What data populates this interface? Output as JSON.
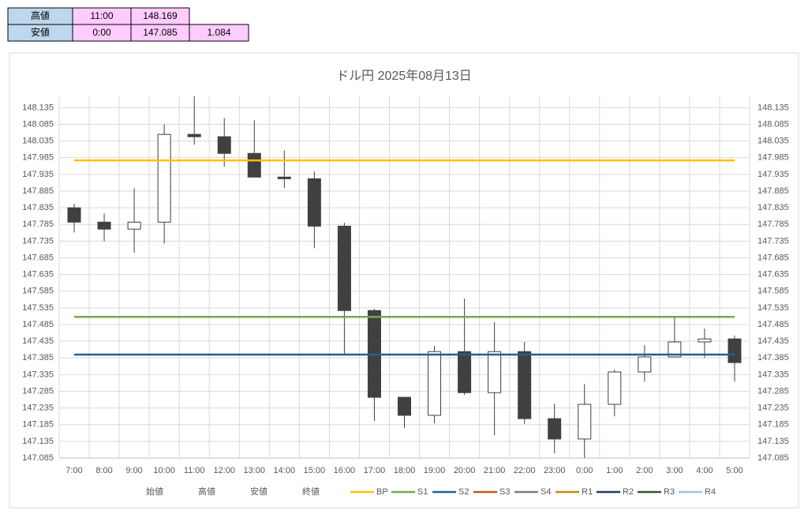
{
  "table": {
    "rows": [
      [
        "高値",
        "11:00",
        "148.169"
      ],
      [
        "安値",
        "0:00",
        "147.085",
        "1.084"
      ]
    ]
  },
  "chart_data": {
    "type": "candlestick",
    "title": "ドル円 2025年08月13日",
    "categories": [
      "7:00",
      "8:00",
      "9:00",
      "10:00",
      "11:00",
      "12:00",
      "13:00",
      "14:00",
      "15:00",
      "16:00",
      "17:00",
      "18:00",
      "19:00",
      "20:00",
      "21:00",
      "22:00",
      "23:00",
      "0:00",
      "1:00",
      "2:00",
      "3:00",
      "4:00",
      "5:00"
    ],
    "ohlc_names": [
      "始値",
      "高値",
      "安値",
      "終値"
    ],
    "open": [
      147.835,
      147.792,
      147.771,
      147.792,
      148.055,
      148.048,
      147.998,
      147.927,
      147.922,
      147.78,
      147.527,
      147.267,
      147.213,
      147.404,
      147.281,
      147.404,
      147.203,
      147.142,
      147.246,
      147.343,
      147.388,
      147.433,
      147.442
    ],
    "high": [
      147.847,
      147.818,
      147.894,
      148.085,
      148.169,
      148.104,
      148.097,
      148.007,
      147.944,
      147.79,
      147.532,
      147.267,
      147.421,
      147.563,
      147.492,
      147.433,
      147.248,
      147.307,
      147.35,
      147.423,
      147.506,
      147.473,
      147.452
    ],
    "low": [
      147.761,
      147.735,
      147.7,
      147.728,
      148.024,
      147.958,
      147.927,
      147.894,
      147.714,
      147.395,
      147.196,
      147.175,
      147.189,
      147.274,
      147.154,
      147.187,
      147.099,
      147.085,
      147.21,
      147.314,
      147.388,
      147.385,
      147.314
    ],
    "close": [
      147.792,
      147.771,
      147.792,
      148.055,
      148.048,
      147.998,
      147.927,
      147.922,
      147.78,
      147.527,
      147.267,
      147.213,
      147.404,
      147.281,
      147.404,
      147.203,
      147.142,
      147.246,
      147.343,
      147.388,
      147.433,
      147.442,
      147.371
    ],
    "up_color": "#ffffff",
    "down_color": "#404040",
    "lines": [
      {
        "name": "BP",
        "color": "#ffc000",
        "value": 147.977
      },
      {
        "name": "S1",
        "color": "#70ad47",
        "value": 147.508
      },
      {
        "name": "S2",
        "color": "#255e91",
        "value": 147.395
      },
      {
        "name": "S3",
        "color": "#c55a11"
      },
      {
        "name": "S4",
        "color": "#7f7f7f"
      },
      {
        "name": "R1",
        "color": "#bf8f00"
      },
      {
        "name": "R2",
        "color": "#203864"
      },
      {
        "name": "R3",
        "color": "#375623"
      },
      {
        "name": "R4",
        "color": "#9dc3e6"
      }
    ],
    "ylim": [
      147.085,
      148.169
    ],
    "yticks": [
      147.085,
      147.135,
      147.185,
      147.235,
      147.285,
      147.335,
      147.385,
      147.435,
      147.485,
      147.535,
      147.585,
      147.635,
      147.685,
      147.735,
      147.785,
      147.835,
      147.885,
      147.935,
      147.985,
      148.035,
      148.085,
      148.135
    ],
    "grid": true
  }
}
